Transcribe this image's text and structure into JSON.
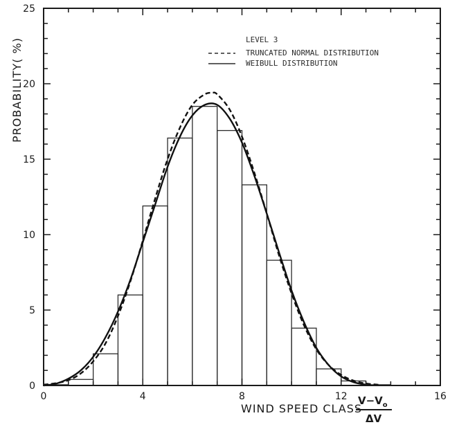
{
  "chart_data": {
    "type": "line",
    "title": "",
    "xlabel": "WIND SPEED CLASS",
    "xlabel_fraction": {
      "numerator": "V−V",
      "numerator_subscript": "o",
      "denominator": "ΔV"
    },
    "ylabel": "PROBABILITY( %)",
    "xlim": [
      0,
      16
    ],
    "ylim": [
      0,
      25
    ],
    "x_ticks": [
      0,
      4,
      8,
      12,
      16
    ],
    "y_ticks": [
      0,
      5,
      10,
      15,
      20,
      25
    ],
    "x_minor_step": 1,
    "y_minor_step": 1,
    "grid": false,
    "legend_position": "top-right",
    "legend_title": "LEVEL 3",
    "histogram": {
      "name": "",
      "bin_edges": [
        0,
        1,
        2,
        3,
        4,
        5,
        6,
        7,
        8,
        9,
        10,
        11,
        12,
        13,
        14
      ],
      "values": [
        0.05,
        0.4,
        2.1,
        6.0,
        11.9,
        16.4,
        18.5,
        16.9,
        13.3,
        8.3,
        3.8,
        1.1,
        0.3,
        0.05
      ]
    },
    "series": [
      {
        "name": "TRUNCATED NORMAL DISTRIBUTION",
        "style": "dashed",
        "x": [
          0,
          0.5,
          1,
          1.5,
          2,
          2.5,
          3,
          3.5,
          4,
          4.5,
          5,
          5.5,
          6,
          6.5,
          6.8,
          7,
          7.5,
          8,
          8.5,
          9,
          9.5,
          10,
          10.5,
          11,
          11.5,
          12,
          12.5,
          13,
          13.5
        ],
        "y": [
          0.05,
          0.15,
          0.35,
          0.8,
          1.6,
          2.8,
          4.6,
          6.9,
          9.6,
          12.4,
          15.0,
          17.1,
          18.6,
          19.3,
          19.4,
          19.3,
          18.3,
          16.5,
          14.1,
          11.4,
          8.6,
          6.1,
          4.0,
          2.4,
          1.35,
          0.7,
          0.32,
          0.13,
          0.05
        ]
      },
      {
        "name": "WEIBULL DISTRIBUTION",
        "style": "solid",
        "x": [
          0,
          0.5,
          1,
          1.5,
          2,
          2.5,
          3,
          3.5,
          4,
          4.5,
          5,
          5.5,
          6,
          6.5,
          7,
          7.5,
          8,
          8.5,
          9,
          9.5,
          10,
          10.5,
          11,
          11.5,
          12,
          12.5,
          13
        ],
        "y": [
          0,
          0.12,
          0.45,
          1.0,
          1.9,
          3.2,
          4.9,
          7.0,
          9.5,
          12.0,
          14.5,
          16.5,
          17.9,
          18.6,
          18.6,
          17.7,
          16.1,
          13.9,
          11.4,
          8.8,
          6.3,
          4.2,
          2.5,
          1.35,
          0.6,
          0.22,
          0.05
        ]
      }
    ]
  }
}
